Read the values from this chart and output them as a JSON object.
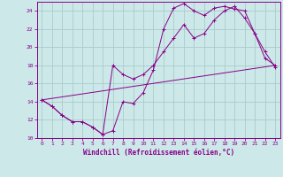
{
  "xlabel": "Windchill (Refroidissement éolien,°C)",
  "bg_color": "#cce8e8",
  "grid_color": "#aacccc",
  "line_color": "#880088",
  "xlim": [
    -0.5,
    23.5
  ],
  "ylim": [
    10,
    25
  ],
  "xticks": [
    0,
    1,
    2,
    3,
    4,
    5,
    6,
    7,
    8,
    9,
    10,
    11,
    12,
    13,
    14,
    15,
    16,
    17,
    18,
    19,
    20,
    21,
    22,
    23
  ],
  "yticks": [
    10,
    12,
    14,
    16,
    18,
    20,
    22,
    24
  ],
  "series1_x": [
    0,
    1,
    2,
    3,
    4,
    5,
    6,
    7,
    8,
    9,
    10,
    11,
    12,
    13,
    14,
    15,
    16,
    17,
    18,
    19,
    20,
    21,
    22,
    23
  ],
  "series1_y": [
    14.2,
    13.5,
    12.5,
    11.8,
    11.8,
    11.2,
    10.4,
    10.8,
    14.0,
    13.8,
    15.0,
    17.5,
    22.0,
    24.3,
    24.8,
    24.0,
    23.5,
    24.3,
    24.5,
    24.2,
    24.0,
    21.5,
    18.8,
    18.0
  ],
  "series2_x": [
    0,
    1,
    2,
    3,
    4,
    5,
    6,
    7,
    8,
    9,
    10,
    11,
    12,
    13,
    14,
    15,
    16,
    17,
    18,
    19,
    20,
    21,
    22,
    23
  ],
  "series2_y": [
    14.2,
    13.5,
    12.5,
    11.8,
    11.8,
    11.2,
    10.4,
    18.0,
    17.0,
    16.5,
    17.0,
    18.0,
    19.5,
    21.0,
    22.5,
    21.0,
    21.5,
    23.0,
    24.0,
    24.5,
    23.2,
    21.5,
    19.5,
    17.8
  ],
  "series3_x": [
    0,
    23
  ],
  "series3_y": [
    14.2,
    18.0
  ]
}
